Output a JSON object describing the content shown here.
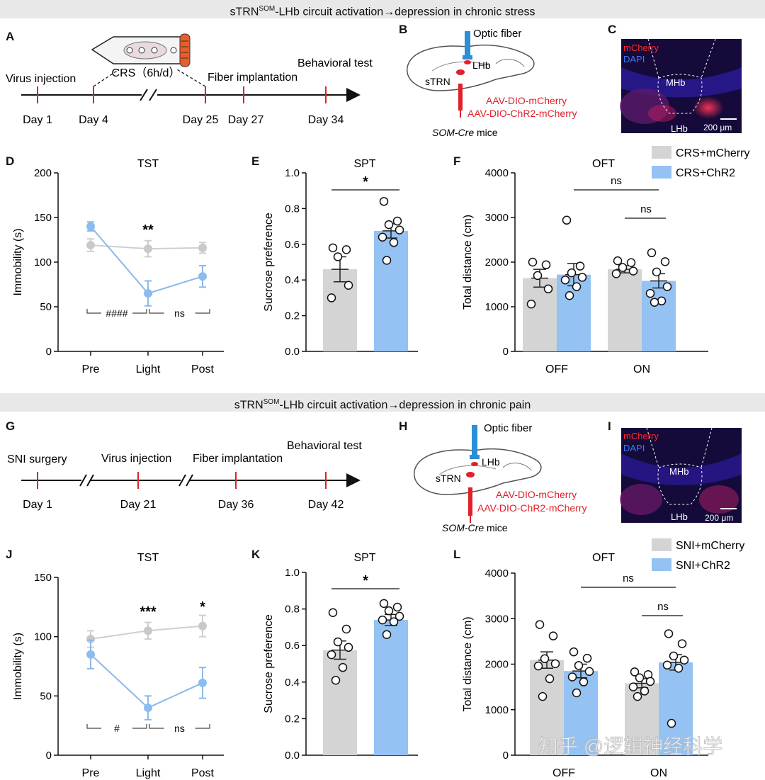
{
  "banners": {
    "top": {
      "pre": "sTRN",
      "sup": "SOM",
      "post": "-LHb circuit activation→depression in chronic stress"
    },
    "bottom": {
      "pre": "sTRN",
      "sup": "SOM",
      "post": "-LHb circuit activation→depression in chronic pain"
    }
  },
  "panel_letters": [
    "A",
    "B",
    "C",
    "D",
    "E",
    "F",
    "G",
    "H",
    "I",
    "J",
    "K",
    "L"
  ],
  "colors": {
    "control": "#d4d4d4",
    "chr2": "#94c2f2",
    "chr2_line": "#8ab8ea",
    "control_line": "#cfcfcf",
    "red": "#e0202a",
    "fiber": "#2a8fd6"
  },
  "timeline_A": {
    "days": [
      "Day 1",
      "Day 4",
      "Day 25",
      "Day 27",
      "Day 34"
    ],
    "events": [
      "Virus injection",
      "Fiber implantation",
      "Behavioral test"
    ],
    "crs_label": "CRS（6h/d）"
  },
  "timeline_G": {
    "days": [
      "Day 1",
      "Day 21",
      "Day 36",
      "Day 42"
    ],
    "events": [
      "SNI surgery",
      "Virus injection",
      "Fiber implantation",
      "Behavioral test"
    ]
  },
  "schematic": {
    "optic_fiber": "Optic fiber",
    "lhb": "LHb",
    "strn": "sTRN",
    "virus1": "AAV-DIO-mCherry",
    "virus2": "AAV-DIO-ChR2-mCherry",
    "mice_italic": "SOM-Cre",
    "mice_rest": " mice"
  },
  "histology": {
    "mcherry": "mCherry",
    "dapi": "DAPI",
    "mhb": "MHb",
    "lhb": "LHb",
    "scale": "200 μm"
  },
  "watermark": "知乎 @逻辑神经科学",
  "chart_data": [
    {
      "panel": "D",
      "type": "line",
      "title": "TST",
      "ylabel": "Immobility (s)",
      "categories": [
        "Pre",
        "Light",
        "Post"
      ],
      "ylim": [
        0,
        200
      ],
      "yticks": [
        "0",
        "50",
        "100",
        "150",
        "200"
      ],
      "series": [
        {
          "values": [
            119,
            115,
            116
          ],
          "err": [
            7,
            9,
            6
          ]
        },
        {
          "values": [
            140,
            65,
            84
          ],
          "err": [
            5,
            14,
            12
          ]
        }
      ],
      "stars": {
        "Light": "**"
      },
      "brackets": [
        "####",
        "ns"
      ]
    },
    {
      "panel": "E",
      "type": "bar",
      "title": "SPT",
      "ylabel": "Sucrose preference",
      "ylim": [
        0,
        1.0
      ],
      "yticks": [
        "0.0",
        "0.2",
        "0.4",
        "0.6",
        "0.8",
        "1.0"
      ],
      "bars": [
        {
          "mean": 0.46,
          "err": 0.07,
          "points": [
            0.58,
            0.57,
            0.53,
            0.37,
            0.3
          ]
        },
        {
          "mean": 0.675,
          "err": 0.04,
          "points": [
            0.84,
            0.73,
            0.71,
            0.68,
            0.64,
            0.61,
            0.51
          ]
        }
      ],
      "sig": "*"
    },
    {
      "panel": "F",
      "type": "bar",
      "title": "OFT",
      "ylabel": "Total distance (cm)",
      "categories": [
        "OFF",
        "ON"
      ],
      "ylim": [
        0,
        4000
      ],
      "yticks": [
        "0",
        "1000",
        "2000",
        "3000",
        "4000"
      ],
      "legend": [
        "CRS+mCherry",
        "CRS+ChR2"
      ],
      "groups": [
        [
          {
            "mean": 1640,
            "err": 200,
            "points": [
              2000,
              1940,
              1700,
              1400,
              1060
            ]
          },
          {
            "mean": 1720,
            "err": 250,
            "points": [
              2940,
              1910,
              1760,
              1660,
              1600,
              1450,
              1250
            ]
          }
        ],
        [
          {
            "mean": 1840,
            "err": 80,
            "points": [
              2030,
              1990,
              1880,
              1800,
              1740
            ]
          },
          {
            "mean": 1580,
            "err": 160,
            "points": [
              2210,
              2010,
              1780,
              1450,
              1300,
              1130,
              1100
            ]
          }
        ]
      ],
      "sig": [
        "ns",
        "ns"
      ]
    },
    {
      "panel": "J",
      "type": "line",
      "title": "TST",
      "ylabel": "Immobility (s)",
      "categories": [
        "Pre",
        "Light",
        "Post"
      ],
      "ylim": [
        0,
        150
      ],
      "yticks": [
        "0",
        "50",
        "100",
        "150"
      ],
      "series": [
        {
          "values": [
            98,
            105,
            109
          ],
          "err": [
            7,
            7,
            9
          ]
        },
        {
          "values": [
            85,
            40,
            61
          ],
          "err": [
            12,
            10,
            13
          ]
        }
      ],
      "stars": {
        "Light": "***",
        "Post": "*"
      },
      "brackets": [
        "#",
        "ns"
      ]
    },
    {
      "panel": "K",
      "type": "bar",
      "title": "SPT",
      "ylabel": "Sucrose preference",
      "ylim": [
        0,
        1.0
      ],
      "yticks": [
        "0.0",
        "0.2",
        "0.4",
        "0.6",
        "0.8",
        "1.0"
      ],
      "bars": [
        {
          "mean": 0.575,
          "err": 0.05,
          "points": [
            0.78,
            0.69,
            0.62,
            0.59,
            0.55,
            0.48,
            0.41
          ]
        },
        {
          "mean": 0.74,
          "err": 0.03,
          "points": [
            0.83,
            0.81,
            0.79,
            0.76,
            0.74,
            0.73,
            0.66
          ]
        }
      ],
      "sig": "*"
    },
    {
      "panel": "L",
      "type": "bar",
      "title": "OFT",
      "ylabel": "Total distance (cm)",
      "categories": [
        "OFF",
        "ON"
      ],
      "ylim": [
        0,
        4000
      ],
      "yticks": [
        "0",
        "1000",
        "2000",
        "3000",
        "4000"
      ],
      "legend": [
        "SNI+mCherry",
        "SNI+ChR2"
      ],
      "groups": [
        [
          {
            "mean": 2090,
            "err": 180,
            "points": [
              2870,
              2620,
              2120,
              2010,
              1960,
              1680,
              1290
            ]
          },
          {
            "mean": 1850,
            "err": 150,
            "points": [
              2270,
              2130,
              1970,
              1840,
              1720,
              1610,
              1370
            ]
          }
        ],
        [
          {
            "mean": 1580,
            "err": 100,
            "points": [
              1830,
              1770,
              1700,
              1620,
              1500,
              1410,
              1290
            ]
          },
          {
            "mean": 2040,
            "err": 170,
            "points": [
              2670,
              2450,
              2180,
              2090,
              1980,
              1910,
              700
            ]
          }
        ]
      ],
      "sig": [
        "ns",
        "ns"
      ]
    }
  ]
}
